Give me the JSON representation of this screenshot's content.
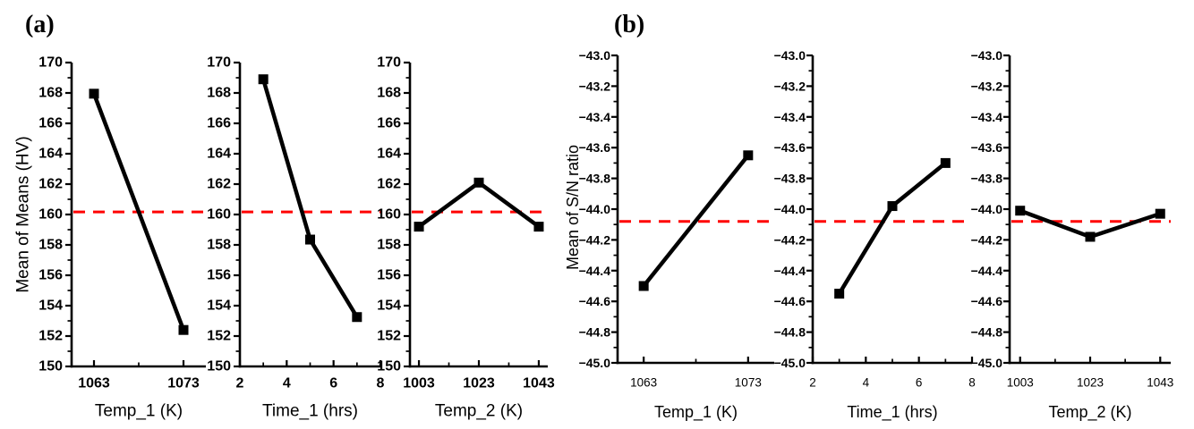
{
  "figure": {
    "background": "#ffffff",
    "description": "Main effects plots for means and S/N ratios"
  },
  "chart_data": [
    {
      "type": "line",
      "panel_label": "(a)",
      "ylabel": "Mean of Means (HV)",
      "ylim": [
        150,
        170
      ],
      "y_major_step": 2,
      "y_minor_step": 1,
      "y_tick_labels": [
        "150",
        "152",
        "154",
        "156",
        "158",
        "160",
        "162",
        "164",
        "166",
        "168",
        "170"
      ],
      "series_color": "#000000",
      "marker": "square",
      "ref_line": {
        "value": 160.17,
        "color": "#ff0000",
        "style": "dashed"
      },
      "legend": "none",
      "grid": "off",
      "subplots": [
        {
          "xlabel": "Temp_1 (K)",
          "xlim": [
            1060.5,
            1075.5
          ],
          "x_major_ticks": [
            1063,
            1073
          ],
          "x_tick_labels": [
            "1063",
            "1073"
          ],
          "x_minor_ticks": [
            1068
          ],
          "x": [
            1063,
            1073
          ],
          "y": [
            167.95,
            152.4
          ]
        },
        {
          "xlabel": "Time_1 (hrs)",
          "xlim": [
            2,
            8
          ],
          "x_major_ticks": [
            2,
            4,
            6,
            8
          ],
          "x_tick_labels": [
            "2",
            "4",
            "6",
            "8"
          ],
          "x_minor_ticks": [
            3,
            5,
            7
          ],
          "x": [
            3,
            5,
            7
          ],
          "y": [
            168.9,
            158.35,
            153.25
          ]
        },
        {
          "xlabel": "Temp_2 (K)",
          "xlim": [
            1000,
            1046
          ],
          "x_major_ticks": [
            1003,
            1023,
            1043
          ],
          "x_tick_labels": [
            "1003",
            "1023",
            "1043"
          ],
          "x_minor_ticks": [
            1013,
            1033
          ],
          "x": [
            1003,
            1023,
            1043
          ],
          "y": [
            159.2,
            162.1,
            159.2
          ]
        }
      ]
    },
    {
      "type": "line",
      "panel_label": "(b)",
      "ylabel": "Mean of S/N ratio",
      "ylim": [
        -45.0,
        -43.0
      ],
      "y_major_step": 0.2,
      "y_minor_step": 0.1,
      "y_tick_labels": [
        "−45.0",
        "−44.8",
        "−44.6",
        "−44.4",
        "−44.2",
        "−44.0",
        "−43.8",
        "−43.6",
        "−43.4",
        "−43.2",
        "−43.0"
      ],
      "series_color": "#000000",
      "marker": "square",
      "ref_line": {
        "value": -44.08,
        "color": "#ff0000",
        "style": "dashed"
      },
      "legend": "none",
      "grid": "off",
      "subplots": [
        {
          "xlabel": "Temp_1 (K)",
          "xlim": [
            1060.5,
            1075.5
          ],
          "x_major_ticks": [
            1063,
            1073
          ],
          "x_tick_labels": [
            "1063",
            "1073"
          ],
          "x_minor_ticks": [
            1068
          ],
          "x": [
            1063,
            1073
          ],
          "y": [
            -44.5,
            -43.65
          ]
        },
        {
          "xlabel": "Time_1 (hrs)",
          "xlim": [
            2,
            8
          ],
          "x_major_ticks": [
            2,
            4,
            6,
            8
          ],
          "x_tick_labels": [
            "2",
            "4",
            "6",
            "8"
          ],
          "x_minor_ticks": [
            3,
            5,
            7
          ],
          "x": [
            3,
            5,
            7
          ],
          "y": [
            -44.55,
            -43.98,
            -43.7
          ]
        },
        {
          "xlabel": "Temp_2 (K)",
          "xlim": [
            1000,
            1046
          ],
          "x_major_ticks": [
            1003,
            1023,
            1043
          ],
          "x_tick_labels": [
            "1003",
            "1023",
            "1043"
          ],
          "x_minor_ticks": [
            1013,
            1033
          ],
          "x": [
            1003,
            1023,
            1043
          ],
          "y": [
            -44.01,
            -44.18,
            -44.03
          ]
        }
      ]
    }
  ]
}
